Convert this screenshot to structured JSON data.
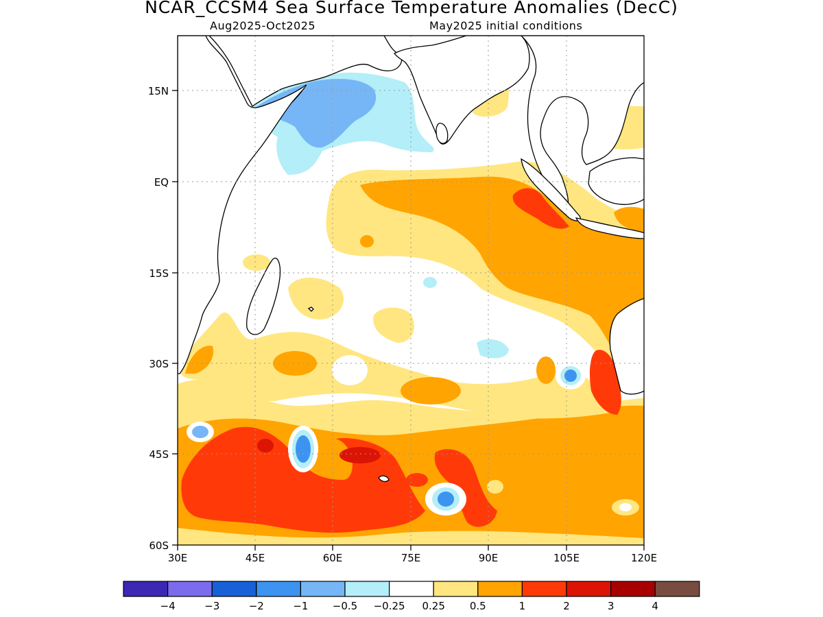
{
  "header": {
    "title": "NCAR_CCSM4 Sea Surface Temperature Anomalies (DecC)",
    "period": "Aug2025-Oct2025",
    "init": "May2025 initial conditions"
  },
  "axes": {
    "lat_labels": [
      "15N",
      "EQ",
      "15S",
      "30S",
      "45S",
      "60S"
    ],
    "lon_labels": [
      "30E",
      "45E",
      "60E",
      "75E",
      "90E",
      "105E",
      "120E"
    ]
  },
  "colorbar": {
    "labels": [
      "−4",
      "−3",
      "−2",
      "−1",
      "−0.5",
      "−0.25",
      "0.25",
      "0.5",
      "1",
      "2",
      "3",
      "4"
    ],
    "colors": [
      "#3c28b4",
      "#7a6cec",
      "#1860d8",
      "#3c94f0",
      "#76b6f6",
      "#b4eef8",
      "#ffffff",
      "#ffe680",
      "#ffa400",
      "#ff3a08",
      "#dc1406",
      "#a80000",
      "#784c40"
    ]
  }
}
